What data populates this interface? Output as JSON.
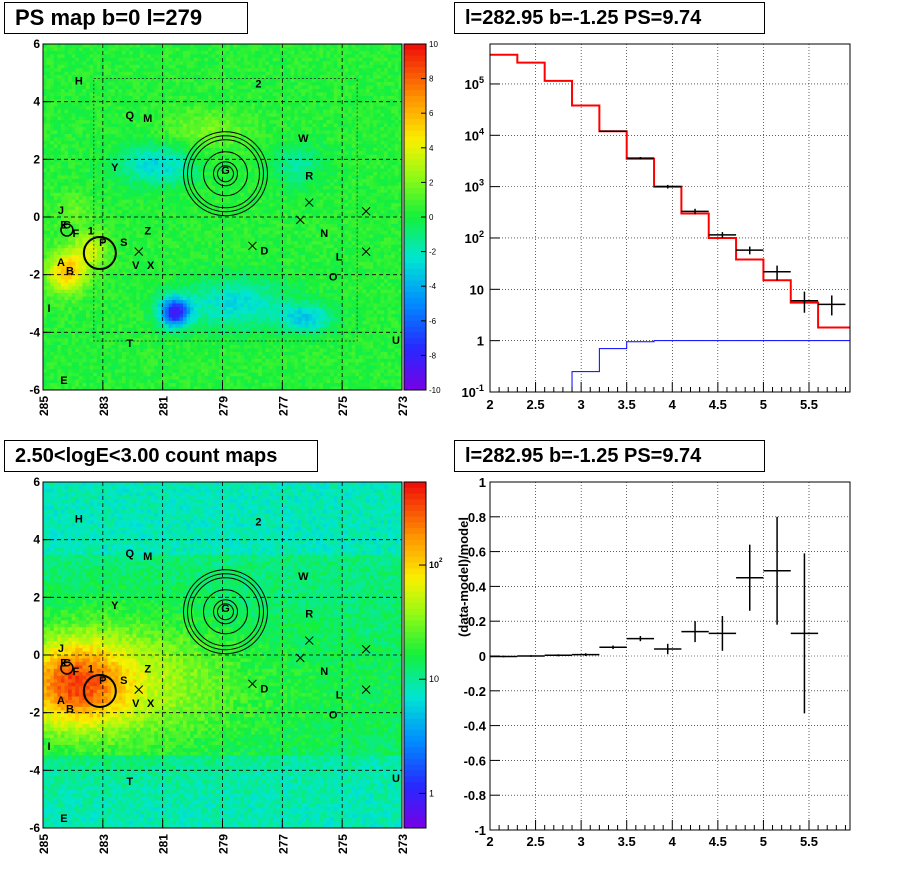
{
  "titles": {
    "map_top": "PS map b=0 l=279",
    "spec_top": "l=282.95 b=-1.25 PS=9.74",
    "map_bottom": "2.50<logE<3.00 count maps",
    "spec_bottom": "l=282.95 b=-1.25 PS=9.74"
  },
  "chart_data": [
    {
      "type": "heatmap",
      "title": "PS map b=0 l=279",
      "xlim": [
        285,
        273
      ],
      "ylim": [
        -6,
        6
      ],
      "x_ticks": [
        "285",
        "283",
        "281",
        "279",
        "277",
        "275",
        "273"
      ],
      "y_ticks": [
        "6",
        "4",
        "2",
        "0",
        "-2",
        "-4",
        "-6"
      ],
      "colorbar": {
        "scale": "linear",
        "min": -10,
        "max": 10,
        "ticks": [
          "10",
          "8",
          "6",
          "4",
          "2",
          "0",
          "-2",
          "-4",
          "-6",
          "-8",
          "-10"
        ]
      },
      "sources": [
        {
          "label": "H",
          "l": 283.8,
          "b": 4.6
        },
        {
          "label": "2",
          "l": 277.8,
          "b": 4.5
        },
        {
          "label": "Q",
          "l": 282.1,
          "b": 3.4
        },
        {
          "label": "M",
          "l": 281.5,
          "b": 3.3
        },
        {
          "label": "W",
          "l": 276.3,
          "b": 2.6
        },
        {
          "label": "Y",
          "l": 282.6,
          "b": 1.6
        },
        {
          "label": "G",
          "l": 278.9,
          "b": 1.5
        },
        {
          "label": "R",
          "l": 276.1,
          "b": 1.3
        },
        {
          "label": "J",
          "l": 284.4,
          "b": 0.1
        },
        {
          "label": "C",
          "l": 284.2,
          "b": -0.4
        },
        {
          "label": "E",
          "l": 284.3,
          "b": -0.4
        },
        {
          "label": "F",
          "l": 283.9,
          "b": -0.7
        },
        {
          "label": "1",
          "l": 283.4,
          "b": -0.6
        },
        {
          "label": "Z",
          "l": 281.5,
          "b": -0.6
        },
        {
          "label": "N",
          "l": 275.6,
          "b": -0.7
        },
        {
          "label": "P",
          "l": 283.0,
          "b": -1.0
        },
        {
          "label": "S",
          "l": 282.3,
          "b": -1.0
        },
        {
          "label": "D",
          "l": 277.6,
          "b": -1.3
        },
        {
          "label": "L",
          "l": 275.1,
          "b": -1.5
        },
        {
          "label": "A",
          "l": 284.4,
          "b": -1.7
        },
        {
          "label": "V",
          "l": 281.9,
          "b": -1.8
        },
        {
          "label": "X",
          "l": 281.4,
          "b": -1.8
        },
        {
          "label": "B",
          "l": 284.1,
          "b": -2.0
        },
        {
          "label": "O",
          "l": 275.3,
          "b": -2.2
        },
        {
          "label": "I",
          "l": 284.8,
          "b": -3.3
        },
        {
          "label": "T",
          "l": 282.1,
          "b": -4.5
        },
        {
          "label": "U",
          "l": 273.2,
          "b": -4.4
        },
        {
          "label": "E",
          "l": 284.3,
          "b": -5.8
        }
      ]
    },
    {
      "type": "line",
      "title": "l=282.95 b=-1.25 PS=9.74",
      "xlim": [
        2,
        5.95
      ],
      "ylim": [
        0.1,
        600000
      ],
      "yscale": "log",
      "grid": true,
      "x_ticks": [
        "2",
        "2.5",
        "3",
        "3.5",
        "4",
        "4.5",
        "5",
        "5.5"
      ],
      "y_ticks": [
        "10^-1",
        "1",
        "10",
        "10^2",
        "10^3",
        "10^4",
        "10^5"
      ],
      "series": [
        {
          "style": "step",
          "color": "#ff0000",
          "edges": [
            2,
            2.3,
            2.6,
            2.9,
            3.2,
            3.5,
            3.8,
            4.1,
            4.4,
            4.7,
            5.0,
            5.3,
            5.6,
            5.95
          ],
          "values": [
            370000,
            260000,
            115000,
            38000,
            12000,
            3500,
            1000,
            300,
            100,
            38,
            15,
            5.5,
            1.8
          ]
        },
        {
          "style": "step",
          "color": "#0000ff",
          "edges": [
            2,
            2.6,
            2.9,
            3.2,
            3.5,
            3.8,
            5.95
          ],
          "values": [
            0.05,
            0.09,
            0.25,
            0.7,
            0.95,
            1.0
          ]
        },
        {
          "style": "errorbars",
          "color": "#000000",
          "x": [
            3.35,
            3.65,
            3.95,
            4.25,
            4.55,
            4.85,
            5.15,
            5.45,
            5.75
          ],
          "y": [
            12000,
            3600,
            1000,
            330,
            115,
            58,
            22,
            6,
            5.1
          ],
          "yerr_lo": [
            400,
            180,
            80,
            40,
            15,
            10,
            7,
            2.5,
            2.0
          ],
          "yerr_hi": [
            400,
            180,
            80,
            40,
            15,
            10,
            7,
            3.0,
            2.5
          ],
          "xerr": 0.15
        }
      ]
    },
    {
      "type": "heatmap",
      "title": "2.50<logE<3.00 count maps",
      "xlim": [
        285,
        273
      ],
      "ylim": [
        -6,
        6
      ],
      "x_ticks": [
        "285",
        "283",
        "281",
        "279",
        "277",
        "275",
        "273"
      ],
      "y_ticks": [
        "6",
        "4",
        "2",
        "0",
        "-2",
        "-4",
        "-6"
      ],
      "colorbar": {
        "scale": "log",
        "ticks": [
          "10^2",
          "10",
          "1"
        ]
      }
    },
    {
      "type": "scatter",
      "title": "l=282.95 b=-1.25 PS=9.74",
      "ylabel": "(data-model)/model",
      "xlim": [
        2,
        5.95
      ],
      "ylim": [
        -1,
        1
      ],
      "grid": true,
      "x_ticks": [
        "2",
        "2.5",
        "3",
        "3.5",
        "4",
        "4.5",
        "5",
        "5.5"
      ],
      "y_ticks": [
        "1",
        "0.8",
        "0.6",
        "0.4",
        "0.2",
        "0",
        "-0.2",
        "-0.4",
        "-0.6",
        "-0.8",
        "-1"
      ],
      "points": [
        {
          "x": 2.15,
          "y": -0.003,
          "err": 0.005
        },
        {
          "x": 2.45,
          "y": 0.0,
          "err": 0.005
        },
        {
          "x": 2.75,
          "y": 0.004,
          "err": 0.006
        },
        {
          "x": 3.05,
          "y": 0.008,
          "err": 0.008
        },
        {
          "x": 3.35,
          "y": 0.05,
          "err": 0.01
        },
        {
          "x": 3.65,
          "y": 0.1,
          "err": 0.015
        },
        {
          "x": 3.95,
          "y": 0.04,
          "err": 0.03
        },
        {
          "x": 4.25,
          "y": 0.14,
          "err": 0.06
        },
        {
          "x": 4.55,
          "y": 0.13,
          "err": 0.1
        },
        {
          "x": 4.85,
          "y": 0.45,
          "err": 0.19
        },
        {
          "x": 5.15,
          "y": 0.49,
          "err": 0.31
        },
        {
          "x": 5.45,
          "y": 0.13,
          "err": 0.46
        }
      ]
    }
  ]
}
